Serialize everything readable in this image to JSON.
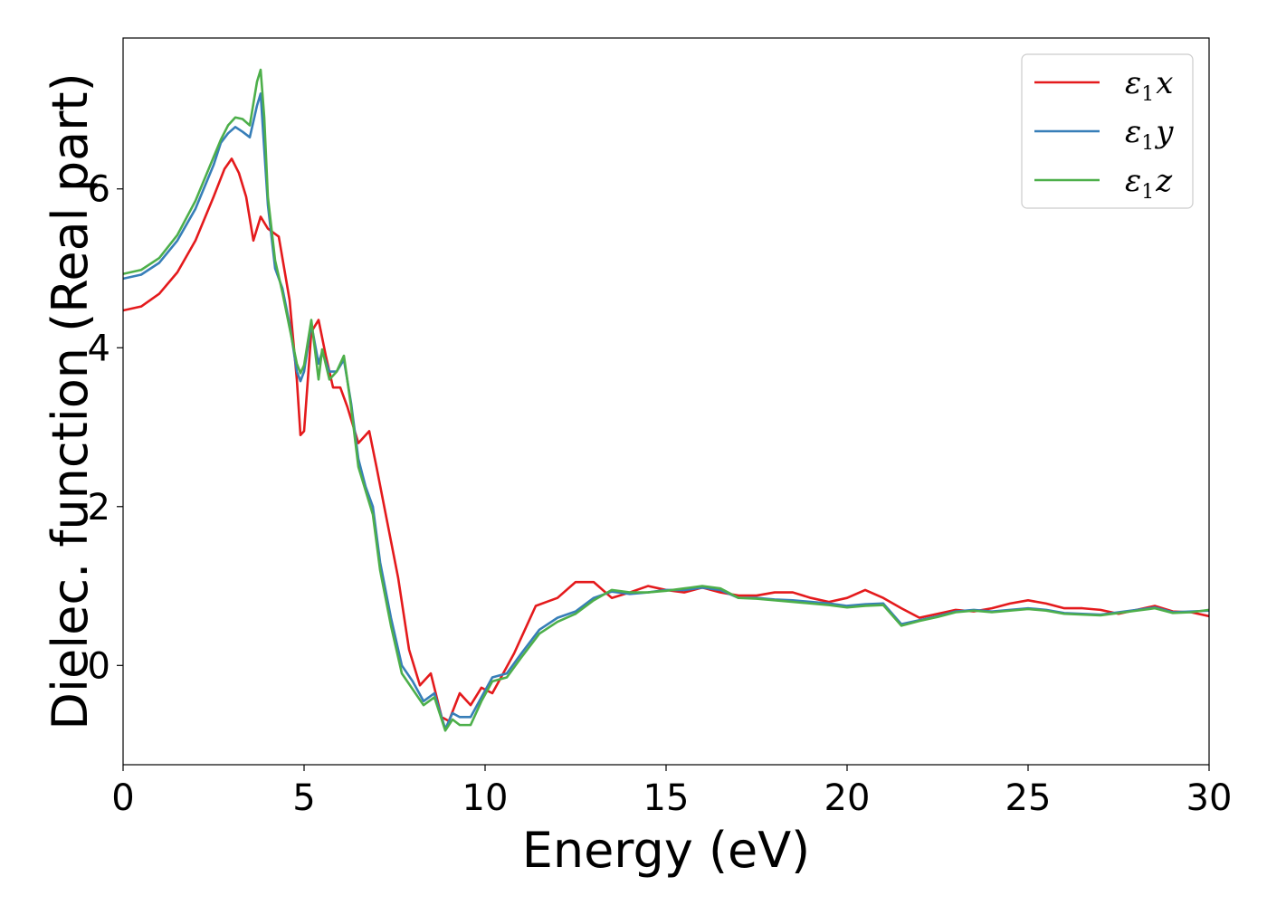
{
  "chart_data": {
    "type": "line",
    "xlabel": "Energy (eV)",
    "ylabel": "Dielec. function (Real part)",
    "xlim": [
      0,
      30
    ],
    "ylim": [
      -1.25,
      7.9
    ],
    "xticks": [
      0,
      5,
      10,
      15,
      20,
      25,
      30
    ],
    "xtick_labels": [
      "0",
      "5",
      "10",
      "15",
      "20",
      "25",
      "30"
    ],
    "yticks": [
      0,
      2,
      4,
      6
    ],
    "ytick_labels": [
      "0",
      "2",
      "4",
      "6"
    ],
    "grid": false,
    "legend_position": "top-right",
    "series": [
      {
        "name_base": "ε",
        "name_sub": "1",
        "name_suffix": "x",
        "color": "#e41a1c",
        "x": [
          0,
          0.5,
          1.0,
          1.5,
          2.0,
          2.5,
          2.8,
          3.0,
          3.2,
          3.4,
          3.6,
          3.8,
          4.0,
          4.3,
          4.6,
          4.8,
          4.9,
          5.0,
          5.2,
          5.4,
          5.6,
          5.8,
          6.0,
          6.2,
          6.5,
          6.8,
          7.0,
          7.3,
          7.6,
          7.9,
          8.2,
          8.5,
          8.8,
          9.0,
          9.3,
          9.6,
          9.9,
          10.2,
          10.5,
          10.8,
          11.1,
          11.4,
          11.7,
          12.0,
          12.5,
          13.0,
          13.5,
          14.0,
          14.5,
          15.0,
          15.5,
          16.0,
          16.5,
          17.0,
          17.5,
          18.0,
          18.5,
          19.0,
          19.5,
          20.0,
          20.5,
          21.0,
          21.5,
          22.0,
          22.5,
          23.0,
          23.5,
          24.0,
          24.5,
          25.0,
          25.5,
          26.0,
          26.5,
          27.0,
          27.5,
          28.0,
          28.5,
          29.0,
          29.5,
          30.0
        ],
        "values": [
          4.47,
          4.52,
          4.68,
          4.95,
          5.35,
          5.9,
          6.25,
          6.38,
          6.2,
          5.9,
          5.35,
          5.65,
          5.5,
          5.4,
          4.6,
          3.6,
          2.9,
          2.95,
          4.2,
          4.35,
          3.9,
          3.5,
          3.5,
          3.25,
          2.8,
          2.95,
          2.5,
          1.8,
          1.1,
          0.2,
          -0.25,
          -0.1,
          -0.65,
          -0.7,
          -0.35,
          -0.5,
          -0.28,
          -0.35,
          -0.1,
          0.15,
          0.45,
          0.75,
          0.8,
          0.85,
          1.05,
          1.05,
          0.85,
          0.92,
          1.0,
          0.95,
          0.92,
          0.98,
          0.92,
          0.88,
          0.88,
          0.92,
          0.92,
          0.85,
          0.8,
          0.85,
          0.95,
          0.85,
          0.72,
          0.6,
          0.65,
          0.7,
          0.68,
          0.72,
          0.78,
          0.82,
          0.78,
          0.72,
          0.72,
          0.7,
          0.65,
          0.7,
          0.75,
          0.68,
          0.67,
          0.62
        ]
      },
      {
        "name_base": "ε",
        "name_sub": "1",
        "name_suffix": "y",
        "color": "#377eb8",
        "x": [
          0,
          0.5,
          1.0,
          1.5,
          2.0,
          2.5,
          2.7,
          2.9,
          3.1,
          3.3,
          3.5,
          3.7,
          3.8,
          3.9,
          4.0,
          4.2,
          4.4,
          4.6,
          4.8,
          4.9,
          5.0,
          5.2,
          5.4,
          5.5,
          5.7,
          5.9,
          6.1,
          6.3,
          6.5,
          6.7,
          6.9,
          7.1,
          7.4,
          7.7,
          8.0,
          8.3,
          8.6,
          8.9,
          9.1,
          9.3,
          9.6,
          9.9,
          10.2,
          10.6,
          11.0,
          11.5,
          12.0,
          12.5,
          13.0,
          13.5,
          14.0,
          14.5,
          15.0,
          15.5,
          16.0,
          16.5,
          17.0,
          17.5,
          18.0,
          18.5,
          19.0,
          19.5,
          20.0,
          20.5,
          21.0,
          21.5,
          22.0,
          22.5,
          23.0,
          23.5,
          24.0,
          24.5,
          25.0,
          25.5,
          26.0,
          26.5,
          27.0,
          27.5,
          28.0,
          28.5,
          29.0,
          29.5,
          30.0
        ],
        "values": [
          4.87,
          4.92,
          5.07,
          5.35,
          5.75,
          6.3,
          6.58,
          6.7,
          6.78,
          6.72,
          6.65,
          7.05,
          7.2,
          6.5,
          5.8,
          5.0,
          4.75,
          4.3,
          3.7,
          3.58,
          3.7,
          4.3,
          3.8,
          3.95,
          3.7,
          3.7,
          3.85,
          3.3,
          2.6,
          2.25,
          2.0,
          1.3,
          0.6,
          0.0,
          -0.2,
          -0.45,
          -0.35,
          -0.8,
          -0.6,
          -0.65,
          -0.65,
          -0.4,
          -0.15,
          -0.1,
          0.15,
          0.45,
          0.6,
          0.68,
          0.85,
          0.93,
          0.9,
          0.92,
          0.95,
          0.95,
          0.98,
          0.95,
          0.85,
          0.85,
          0.83,
          0.82,
          0.8,
          0.78,
          0.75,
          0.77,
          0.78,
          0.52,
          0.57,
          0.62,
          0.68,
          0.7,
          0.68,
          0.7,
          0.72,
          0.7,
          0.66,
          0.65,
          0.64,
          0.67,
          0.7,
          0.73,
          0.67,
          0.68,
          0.69
        ]
      },
      {
        "name_base": "ε",
        "name_sub": "1",
        "name_suffix": "z",
        "color": "#4daf4a",
        "x": [
          0,
          0.5,
          1.0,
          1.5,
          2.0,
          2.5,
          2.7,
          2.9,
          3.1,
          3.3,
          3.5,
          3.7,
          3.8,
          3.9,
          4.0,
          4.2,
          4.4,
          4.6,
          4.8,
          4.9,
          5.0,
          5.2,
          5.4,
          5.5,
          5.7,
          5.9,
          6.1,
          6.3,
          6.5,
          6.7,
          6.9,
          7.1,
          7.4,
          7.7,
          8.0,
          8.3,
          8.6,
          8.9,
          9.1,
          9.3,
          9.6,
          9.9,
          10.2,
          10.6,
          11.0,
          11.5,
          12.0,
          12.5,
          13.0,
          13.5,
          14.0,
          14.5,
          15.0,
          15.5,
          16.0,
          16.5,
          17.0,
          17.5,
          18.0,
          18.5,
          19.0,
          19.5,
          20.0,
          20.5,
          21.0,
          21.5,
          22.0,
          22.5,
          23.0,
          23.5,
          24.0,
          24.5,
          25.0,
          25.5,
          26.0,
          26.5,
          27.0,
          27.5,
          28.0,
          28.5,
          29.0,
          29.5,
          30.0
        ],
        "values": [
          4.93,
          4.98,
          5.13,
          5.42,
          5.85,
          6.4,
          6.62,
          6.8,
          6.9,
          6.88,
          6.8,
          7.35,
          7.5,
          6.9,
          5.9,
          5.1,
          4.7,
          4.25,
          3.8,
          3.68,
          3.78,
          4.35,
          3.6,
          3.98,
          3.6,
          3.7,
          3.9,
          3.25,
          2.5,
          2.2,
          1.9,
          1.2,
          0.5,
          -0.1,
          -0.3,
          -0.5,
          -0.4,
          -0.82,
          -0.68,
          -0.75,
          -0.75,
          -0.45,
          -0.2,
          -0.15,
          0.1,
          0.4,
          0.55,
          0.65,
          0.82,
          0.95,
          0.92,
          0.92,
          0.94,
          0.97,
          1.0,
          0.97,
          0.85,
          0.84,
          0.82,
          0.8,
          0.78,
          0.76,
          0.73,
          0.75,
          0.76,
          0.5,
          0.56,
          0.61,
          0.67,
          0.69,
          0.67,
          0.69,
          0.71,
          0.69,
          0.65,
          0.64,
          0.63,
          0.66,
          0.69,
          0.72,
          0.66,
          0.67,
          0.7
        ]
      }
    ]
  }
}
